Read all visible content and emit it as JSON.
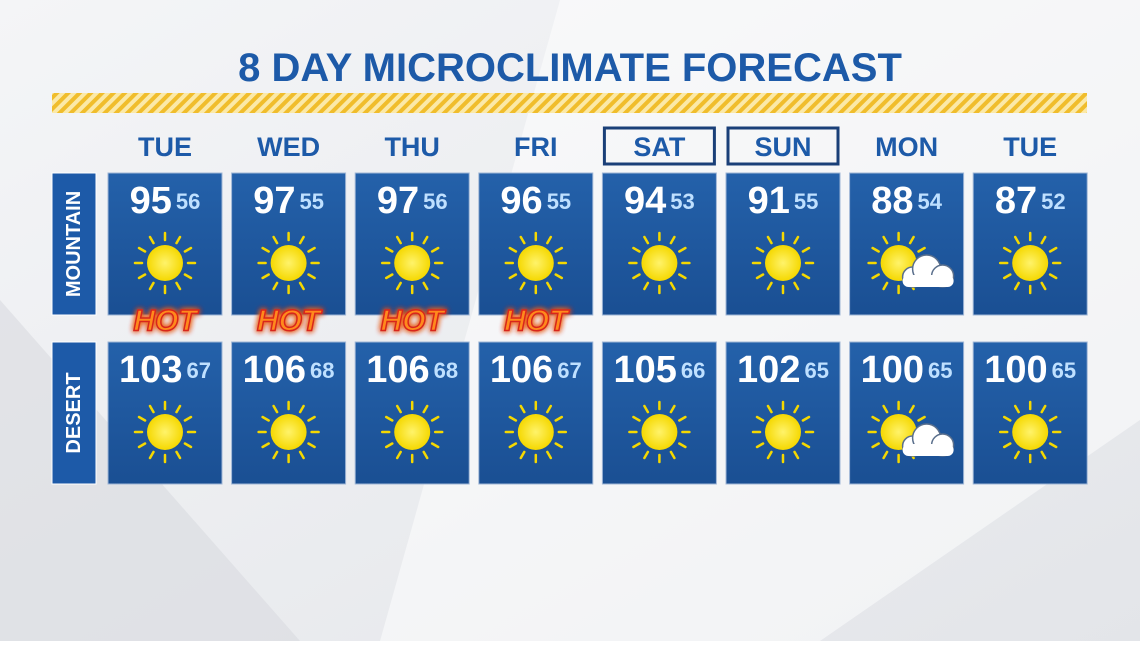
{
  "title": "8 DAY MICROCLIMATE FORECAST",
  "days": [
    {
      "name": "TUE",
      "boxed": false
    },
    {
      "name": "WED",
      "boxed": false
    },
    {
      "name": "THU",
      "boxed": false
    },
    {
      "name": "FRI",
      "boxed": false
    },
    {
      "name": "SAT",
      "boxed": true
    },
    {
      "name": "SUN",
      "boxed": true
    },
    {
      "name": "MON",
      "boxed": false
    },
    {
      "name": "TUE",
      "boxed": false
    }
  ],
  "rows": [
    {
      "label": "MOUNTAIN",
      "cells": [
        {
          "high": 95,
          "low": 56,
          "icon": "sun",
          "tag": "HOT"
        },
        {
          "high": 97,
          "low": 55,
          "icon": "sun",
          "tag": "HOT"
        },
        {
          "high": 97,
          "low": 56,
          "icon": "sun",
          "tag": "HOT"
        },
        {
          "high": 96,
          "low": 55,
          "icon": "sun",
          "tag": "HOT"
        },
        {
          "high": 94,
          "low": 53,
          "icon": "sun"
        },
        {
          "high": 91,
          "low": 55,
          "icon": "sun"
        },
        {
          "high": 88,
          "low": 54,
          "icon": "partly-cloudy"
        },
        {
          "high": 87,
          "low": 52,
          "icon": "sun"
        }
      ]
    },
    {
      "label": "DESERT",
      "cells": [
        {
          "high": 103,
          "low": 67,
          "icon": "sun"
        },
        {
          "high": 106,
          "low": 68,
          "icon": "sun"
        },
        {
          "high": 106,
          "low": 68,
          "icon": "sun"
        },
        {
          "high": 106,
          "low": 67,
          "icon": "sun"
        },
        {
          "high": 105,
          "low": 66,
          "icon": "sun"
        },
        {
          "high": 102,
          "low": 65,
          "icon": "sun"
        },
        {
          "high": 100,
          "low": 65,
          "icon": "partly-cloudy"
        },
        {
          "high": 100,
          "low": 65,
          "icon": "sun"
        }
      ]
    }
  ]
}
